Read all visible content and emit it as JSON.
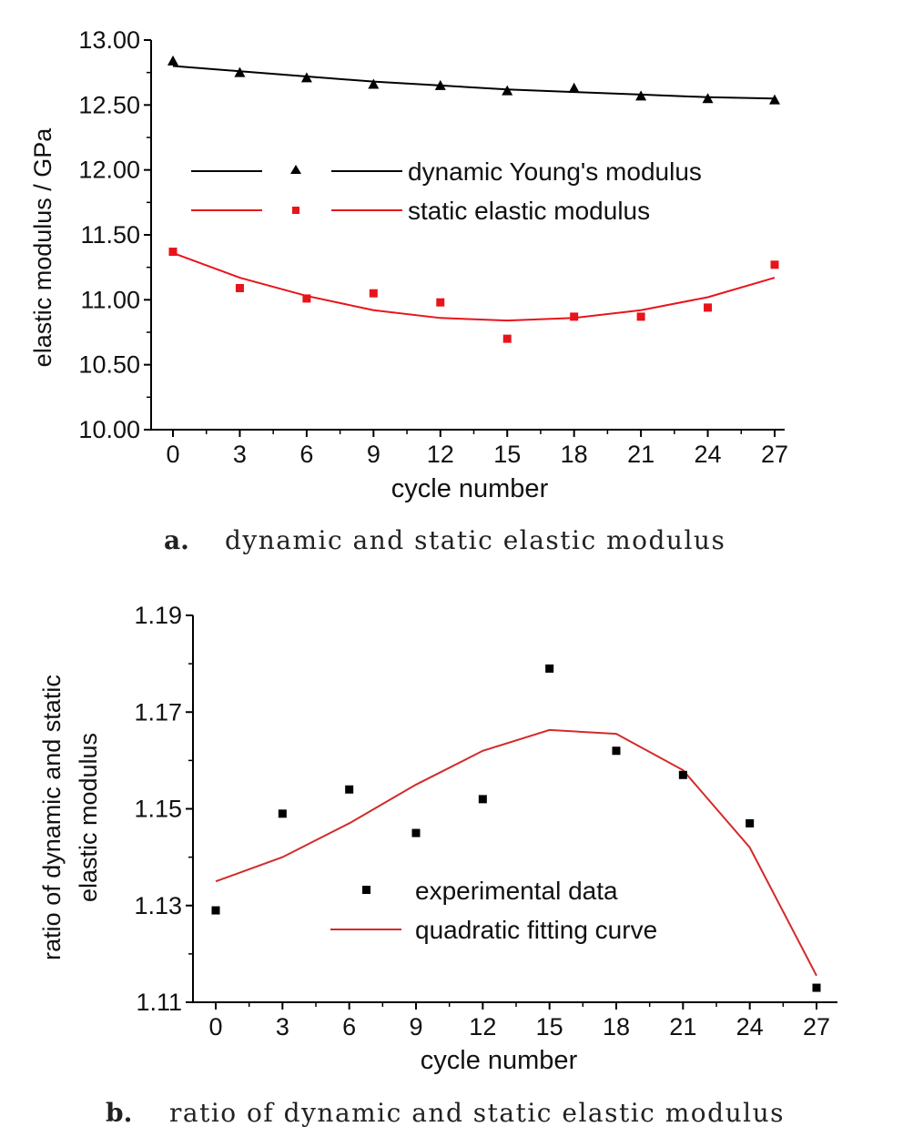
{
  "chart_data": [
    {
      "type": "scatter",
      "caption_letter": "a.",
      "caption_text": "dynamic and static elastic modulus",
      "xlabel": "cycle number",
      "ylabel": "elastic modulus / GPa",
      "xlim": [
        0,
        27
      ],
      "ylim": [
        10.0,
        13.0
      ],
      "x_ticks": [
        "0",
        "3",
        "6",
        "9",
        "12",
        "15",
        "18",
        "21",
        "24",
        "27"
      ],
      "y_ticks": [
        "10.00",
        "10.50",
        "11.00",
        "11.50",
        "12.00",
        "12.50",
        "13.00"
      ],
      "legend_position": "top-center",
      "grid": false,
      "x": [
        0,
        3,
        6,
        9,
        12,
        15,
        18,
        21,
        24,
        27
      ],
      "series": [
        {
          "name": "dynamic Young's modulus",
          "color": "#000000",
          "marker": "triangle",
          "values": [
            12.84,
            12.75,
            12.71,
            12.66,
            12.65,
            12.61,
            12.63,
            12.57,
            12.55,
            12.54
          ],
          "fit": [
            12.8,
            12.76,
            12.72,
            12.68,
            12.65,
            12.62,
            12.6,
            12.58,
            12.56,
            12.55
          ]
        },
        {
          "name": "static elastic modulus",
          "color": "#e8141b",
          "marker": "square",
          "values": [
            11.37,
            11.09,
            11.01,
            11.05,
            10.98,
            10.7,
            10.87,
            10.87,
            10.94,
            11.27
          ],
          "fit": [
            11.36,
            11.17,
            11.03,
            10.92,
            10.86,
            10.84,
            10.86,
            10.92,
            11.02,
            11.17
          ]
        }
      ]
    },
    {
      "type": "scatter",
      "caption_letter": "b.",
      "caption_text": "ratio of dynamic and static elastic modulus",
      "xlabel": "cycle number",
      "ylabel_line1": "ratio of dynamic and static",
      "ylabel_line2": "elastic modulus",
      "xlim": [
        0,
        27
      ],
      "ylim": [
        1.11,
        1.19
      ],
      "x_ticks": [
        "0",
        "3",
        "6",
        "9",
        "12",
        "15",
        "18",
        "21",
        "24",
        "27"
      ],
      "y_ticks": [
        "1.11",
        "1.13",
        "1.15",
        "1.17",
        "1.19"
      ],
      "legend_position": "lower-center",
      "grid": false,
      "x": [
        0,
        3,
        6,
        9,
        12,
        15,
        18,
        21,
        24,
        27
      ],
      "series": [
        {
          "name": "experimental data",
          "color": "#000000",
          "marker": "square",
          "values": [
            1.129,
            1.149,
            1.154,
            1.145,
            1.152,
            1.179,
            1.162,
            1.157,
            1.147,
            1.113
          ]
        },
        {
          "name": "quadratic fitting curve",
          "color": "#d42a2a",
          "marker": "line",
          "values": [
            1.135,
            1.14,
            1.147,
            1.155,
            1.162,
            1.1663,
            1.1655,
            1.158,
            1.142,
            1.1155
          ]
        }
      ]
    }
  ]
}
